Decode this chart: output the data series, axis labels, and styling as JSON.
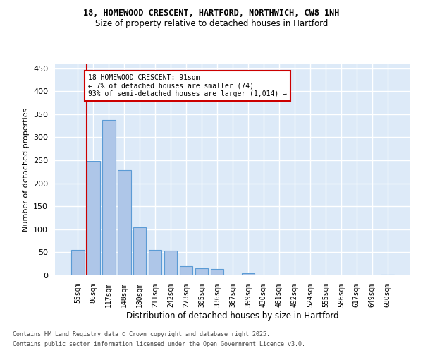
{
  "title1": "18, HOMEWOOD CRESCENT, HARTFORD, NORTHWICH, CW8 1NH",
  "title2": "Size of property relative to detached houses in Hartford",
  "xlabel": "Distribution of detached houses by size in Hartford",
  "ylabel": "Number of detached properties",
  "bins": [
    "55sqm",
    "86sqm",
    "117sqm",
    "148sqm",
    "180sqm",
    "211sqm",
    "242sqm",
    "273sqm",
    "305sqm",
    "336sqm",
    "367sqm",
    "399sqm",
    "430sqm",
    "461sqm",
    "492sqm",
    "524sqm",
    "555sqm",
    "586sqm",
    "617sqm",
    "649sqm",
    "680sqm"
  ],
  "values": [
    55,
    248,
    338,
    228,
    105,
    55,
    53,
    20,
    15,
    14,
    0,
    5,
    0,
    0,
    0,
    0,
    0,
    0,
    0,
    0,
    1
  ],
  "bar_color": "#aec6e8",
  "bar_edge_color": "#5b9bd5",
  "bg_color": "#ddeaf8",
  "grid_color": "#ffffff",
  "vline_color": "#cc0000",
  "annotation_text": "18 HOMEWOOD CRESCENT: 91sqm\n← 7% of detached houses are smaller (74)\n93% of semi-detached houses are larger (1,014) →",
  "annotation_box_color": "#cc0000",
  "ylim": [
    0,
    460
  ],
  "yticks": [
    0,
    50,
    100,
    150,
    200,
    250,
    300,
    350,
    400,
    450
  ],
  "footer1": "Contains HM Land Registry data © Crown copyright and database right 2025.",
  "footer2": "Contains public sector information licensed under the Open Government Licence v3.0."
}
